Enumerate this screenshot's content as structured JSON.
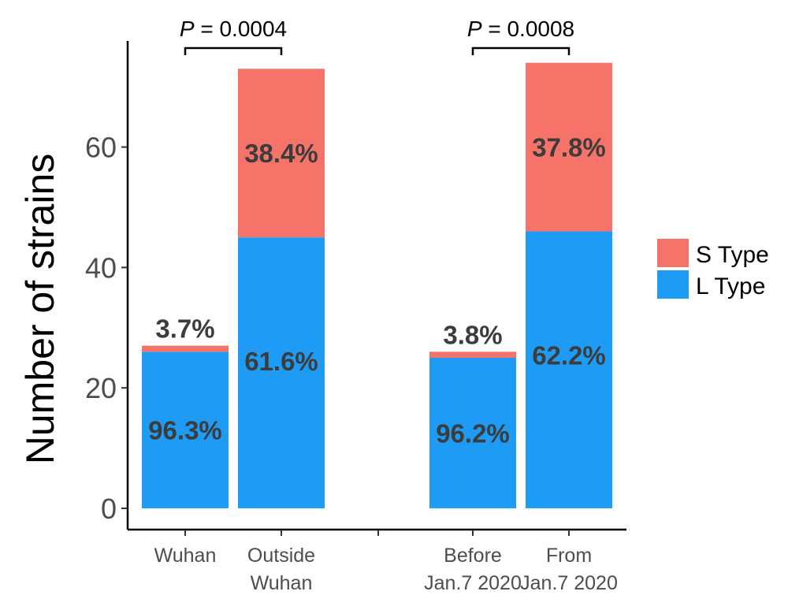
{
  "chart_data": {
    "type": "bar",
    "stacked": true,
    "ylabel": "Number of strains",
    "ylim": [
      0,
      75
    ],
    "yticks": [
      0,
      20,
      40,
      60
    ],
    "categories": [
      [
        "Wuhan"
      ],
      [
        "Outside",
        "Wuhan"
      ],
      [
        "Before",
        "Jan.7 2020"
      ],
      [
        "From",
        "Jan.7 2020"
      ]
    ],
    "series": [
      {
        "name": "L Type",
        "color": "#1e9bf5",
        "values": [
          26,
          45,
          25,
          46
        ]
      },
      {
        "name": "S Type",
        "color": "#f6736a",
        "values": [
          1,
          28,
          1,
          28
        ]
      }
    ],
    "labels": {
      "L Type": [
        "96.3%",
        "61.6%",
        "96.2%",
        "62.2%"
      ],
      "S Type": [
        "3.7%",
        "38.4%",
        "3.8%",
        "37.8%"
      ]
    },
    "comparisons": [
      {
        "between": [
          0,
          1
        ],
        "p_symbol": "P",
        "text": " = 0.0004"
      },
      {
        "between": [
          2,
          3
        ],
        "p_symbol": "P",
        "text": " = 0.0008"
      }
    ],
    "legend": {
      "position": "right",
      "entries": [
        {
          "name": "S Type",
          "color": "#f6736a"
        },
        {
          "name": "L Type",
          "color": "#1e9bf5"
        }
      ]
    }
  }
}
